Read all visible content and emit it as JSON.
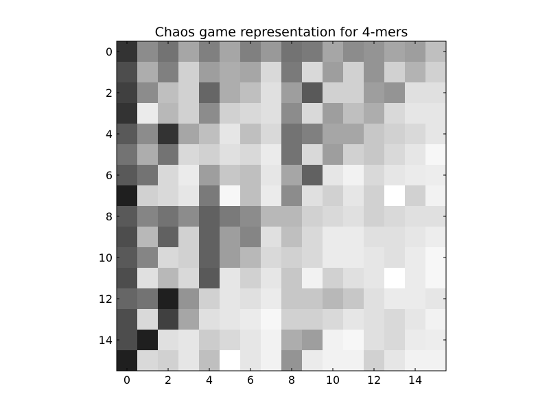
{
  "chart_data": {
    "type": "heatmap",
    "title": "Chaos game representation for 4-mers",
    "xlabel": "",
    "ylabel": "",
    "colormap": "gray",
    "x_ticks": [
      "0",
      "2",
      "4",
      "6",
      "8",
      "10",
      "12",
      "14"
    ],
    "y_ticks": [
      "0",
      "2",
      "4",
      "6",
      "8",
      "10",
      "12",
      "14"
    ],
    "xlim": [
      -0.5,
      15.5
    ],
    "ylim": [
      15.5,
      -0.5
    ],
    "rows": 16,
    "cols": 16,
    "values": [
      [
        0.2,
        0.55,
        0.45,
        0.65,
        0.5,
        0.65,
        0.5,
        0.6,
        0.45,
        0.48,
        0.65,
        0.55,
        0.58,
        0.65,
        0.62,
        0.75
      ],
      [
        0.3,
        0.68,
        0.5,
        0.82,
        0.62,
        0.68,
        0.65,
        0.85,
        0.48,
        0.85,
        0.62,
        0.82,
        0.58,
        0.82,
        0.7,
        0.82
      ],
      [
        0.25,
        0.55,
        0.75,
        0.82,
        0.4,
        0.68,
        0.75,
        0.88,
        0.62,
        0.35,
        0.82,
        0.82,
        0.62,
        0.58,
        0.88,
        0.88
      ],
      [
        0.2,
        0.92,
        0.72,
        0.82,
        0.55,
        0.82,
        0.85,
        0.88,
        0.55,
        0.85,
        0.62,
        0.75,
        0.68,
        0.85,
        0.9,
        0.9
      ],
      [
        0.35,
        0.55,
        0.2,
        0.65,
        0.75,
        0.9,
        0.75,
        0.85,
        0.45,
        0.5,
        0.65,
        0.65,
        0.78,
        0.82,
        0.85,
        0.9
      ],
      [
        0.45,
        0.68,
        0.45,
        0.85,
        0.82,
        0.88,
        0.85,
        0.92,
        0.45,
        0.85,
        0.62,
        0.82,
        0.78,
        0.85,
        0.9,
        0.97
      ],
      [
        0.35,
        0.45,
        0.85,
        0.92,
        0.62,
        0.78,
        0.75,
        0.9,
        0.65,
        0.38,
        0.9,
        0.95,
        0.85,
        0.9,
        0.92,
        0.93
      ],
      [
        0.12,
        0.82,
        0.85,
        0.9,
        0.48,
        0.97,
        0.75,
        0.92,
        0.55,
        0.88,
        0.82,
        0.9,
        0.82,
        1.0,
        0.82,
        0.95
      ],
      [
        0.35,
        0.52,
        0.45,
        0.55,
        0.38,
        0.48,
        0.55,
        0.72,
        0.72,
        0.82,
        0.85,
        0.88,
        0.82,
        0.85,
        0.88,
        0.88
      ],
      [
        0.3,
        0.72,
        0.38,
        0.82,
        0.38,
        0.62,
        0.52,
        0.88,
        0.75,
        0.85,
        0.92,
        0.92,
        0.88,
        0.88,
        0.9,
        0.93
      ],
      [
        0.35,
        0.52,
        0.85,
        0.82,
        0.38,
        0.62,
        0.72,
        0.85,
        0.82,
        0.85,
        0.92,
        0.92,
        0.9,
        0.88,
        0.92,
        0.97
      ],
      [
        0.3,
        0.88,
        0.72,
        0.85,
        0.35,
        0.9,
        0.82,
        0.9,
        0.78,
        0.95,
        0.82,
        0.88,
        0.9,
        1.0,
        0.92,
        0.97
      ],
      [
        0.4,
        0.45,
        0.12,
        0.58,
        0.82,
        0.9,
        0.88,
        0.92,
        0.78,
        0.78,
        0.72,
        0.78,
        0.88,
        0.92,
        0.92,
        0.9
      ],
      [
        0.3,
        0.85,
        0.25,
        0.65,
        0.88,
        0.9,
        0.92,
        0.97,
        0.82,
        0.82,
        0.85,
        0.9,
        0.88,
        0.85,
        0.9,
        0.95
      ],
      [
        0.3,
        0.12,
        0.88,
        0.9,
        0.8,
        0.85,
        0.9,
        0.95,
        0.68,
        0.62,
        0.95,
        0.97,
        0.88,
        0.85,
        0.92,
        0.93
      ],
      [
        0.12,
        0.85,
        0.82,
        0.9,
        0.75,
        1.0,
        0.9,
        0.95,
        0.58,
        0.92,
        0.95,
        0.95,
        0.82,
        0.9,
        0.95,
        0.95
      ]
    ]
  }
}
